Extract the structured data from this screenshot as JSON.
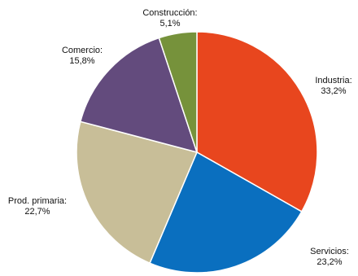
{
  "chart_data": {
    "type": "pie",
    "slices": [
      {
        "label": "Industria:",
        "value_label": "33,2%",
        "value": 33.2,
        "color": "#e8461e"
      },
      {
        "label": "Servicios:",
        "value_label": "23,2%",
        "value": 23.2,
        "color": "#0a6fbf"
      },
      {
        "label": "Prod. primaria:",
        "value_label": "22,7%",
        "value": 22.7,
        "color": "#c8be98"
      },
      {
        "label": "Comercio:",
        "value_label": "15,8%",
        "value": 15.8,
        "color": "#634b7d"
      },
      {
        "label": "Construcción:",
        "value_label": "5,1%",
        "value": 5.1,
        "color": "#76923b"
      }
    ],
    "start": "top",
    "direction": "clockwise",
    "legend": "none"
  }
}
